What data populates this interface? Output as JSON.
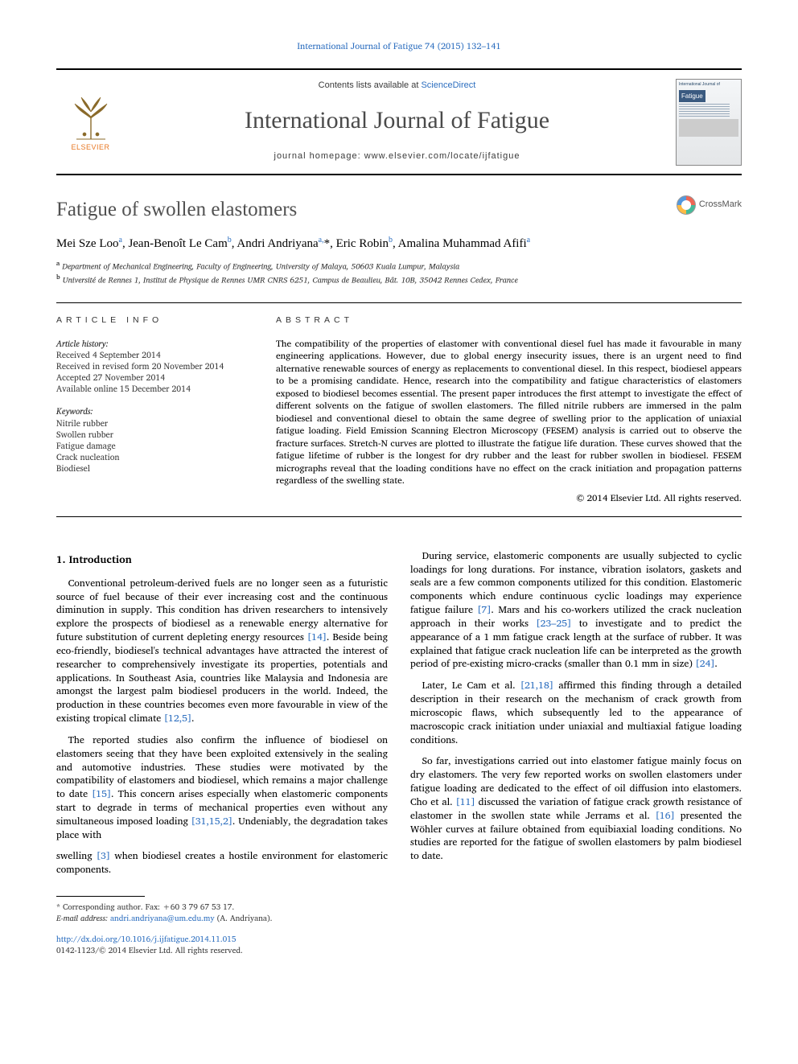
{
  "citation": "International Journal of Fatigue 74 (2015) 132–141",
  "masthead": {
    "contents_pre": "Contents lists available at ",
    "contents_link": "ScienceDirect",
    "journal_title": "International Journal of Fatigue",
    "homepage_pre": "journal homepage: ",
    "homepage": "www.elsevier.com/locate/ijfatigue",
    "publisher_label": "ELSEVIER"
  },
  "cover": {
    "small1": "International Journal of",
    "small2": "Fatigue"
  },
  "article": {
    "title": "Fatigue of swollen elastomers",
    "crossmark": "CrossMark",
    "authors_html": "Mei Sze Loo<sup>a</sup>, Jean-Benoît Le Cam<sup>b</sup>, Andri Andriyana<sup>a,</sup><span class='star'>*</span>, Eric Robin<sup>b</sup>, Amalina Muhammad Afifi<sup>a</sup>",
    "affiliations": [
      {
        "sup": "a",
        "text": "Department of Mechanical Engineering, Faculty of Engineering, University of Malaya, 50603 Kuala Lumpur, Malaysia"
      },
      {
        "sup": "b",
        "text": "Université de Rennes 1, Institut de Physique de Rennes UMR CNRS 6251, Campus de Beaulieu, Bât. 10B, 35042 Rennes Cedex, France"
      }
    ]
  },
  "info": {
    "heading": "article info",
    "history_label": "Article history:",
    "history": [
      "Received 4 September 2014",
      "Received in revised form 20 November 2014",
      "Accepted 27 November 2014",
      "Available online 15 December 2014"
    ],
    "keywords_label": "Keywords:",
    "keywords": [
      "Nitrile rubber",
      "Swollen rubber",
      "Fatigue damage",
      "Crack nucleation",
      "Biodiesel"
    ]
  },
  "abstract": {
    "heading": "abstract",
    "text": "The compatibility of the properties of elastomer with conventional diesel fuel has made it favourable in many engineering applications. However, due to global energy insecurity issues, there is an urgent need to find alternative renewable sources of energy as replacements to conventional diesel. In this respect, biodiesel appears to be a promising candidate. Hence, research into the compatibility and fatigue characteristics of elastomers exposed to biodiesel becomes essential. The present paper introduces the first attempt to investigate the effect of different solvents on the fatigue of swollen elastomers. The filled nitrile rubbers are immersed in the palm biodiesel and conventional diesel to obtain the same degree of swelling prior to the application of uniaxial fatigue loading. Field Emission Scanning Electron Microscopy (FESEM) analysis is carried out to observe the fracture surfaces. Stretch-N curves are plotted to illustrate the fatigue life duration. These curves showed that the fatigue lifetime of rubber is the longest for dry rubber and the least for rubber swollen in biodiesel. FESEM micrographs reveal that the loading conditions have no effect on the crack initiation and propagation patterns regardless of the swelling state.",
    "copyright": "© 2014 Elsevier Ltd. All rights reserved."
  },
  "section1": {
    "heading": "1. Introduction",
    "paras": [
      "Conventional petroleum-derived fuels are no longer seen as a futuristic source of fuel because of their ever increasing cost and the continuous diminution in supply. This condition has driven researchers to intensively explore the prospects of biodiesel as a renewable energy alternative for future substitution of current depleting energy resources <span class='ref'>[14]</span>. Beside being eco-friendly, biodiesel's technical advantages have attracted the interest of researcher to comprehensively investigate its properties, potentials and applications. In Southeast Asia, countries like Malaysia and Indonesia are amongst the largest palm biodiesel producers in the world. Indeed, the production in these countries becomes even more favourable in view of the existing tropical climate <span class='ref'>[12,5]</span>.",
      "The reported studies also confirm the influence of biodiesel on elastomers seeing that they have been exploited extensively in the sealing and automotive industries. These studies were motivated by the compatibility of elastomers and biodiesel, which remains a major challenge to date <span class='ref'>[15]</span>. This concern arises especially when elastomeric components start to degrade in terms of mechanical properties even without any simultaneous imposed loading <span class='ref'>[31,15,2]</span>. Undeniably, the degradation takes place with",
      "swelling <span class='ref'>[3]</span> when biodiesel creates a hostile environment for elastomeric components.",
      "During service, elastomeric components are usually subjected to cyclic loadings for long durations. For instance, vibration isolators, gaskets and seals are a few common components utilized for this condition. Elastomeric components which endure continuous cyclic loadings may experience fatigue failure <span class='ref'>[7]</span>. Mars and his co-workers utilized the crack nucleation approach in their works <span class='ref'>[23–25]</span> to investigate and to predict the appearance of a 1 mm fatigue crack length at the surface of rubber. It was explained that fatigue crack nucleation life can be interpreted as the growth period of pre-existing micro-cracks (smaller than 0.1 mm in size) <span class='ref'>[24]</span>.",
      "Later, Le Cam et al. <span class='ref'>[21,18]</span> affirmed this finding through a detailed description in their research on the mechanism of crack growth from microscopic flaws, which subsequently led to the appearance of macroscopic crack initiation under uniaxial and multiaxial fatigue loading conditions.",
      "So far, investigations carried out into elastomer fatigue mainly focus on dry elastomers. The very few reported works on swollen elastomers under fatigue loading are dedicated to the effect of oil diffusion into elastomers. Cho et al. <span class='ref'>[11]</span> discussed the variation of fatigue crack growth resistance of elastomer in the swollen state while Jerrams et al. <span class='ref'>[16]</span> presented the Wöhler curves at failure obtained from equibiaxial loading conditions. No studies are reported for the fatigue of swollen elastomers by palm biodiesel to date."
    ]
  },
  "footer": {
    "corr": "Corresponding author. Fax: +60 3 79 67 53 17.",
    "email_label": "E-mail address:",
    "email": "andri.andriyana@um.edu.my",
    "email_tail": " (A. Andriyana).",
    "doi": "http://dx.doi.org/10.1016/j.ijfatigue.2014.11.015",
    "issn_line": "0142-1123/© 2014 Elsevier Ltd. All rights reserved."
  },
  "colors": {
    "link": "#2c6ebf",
    "elsevier_orange": "#e87722",
    "text_gray": "#3a3a3a",
    "title_gray": "#505050"
  }
}
